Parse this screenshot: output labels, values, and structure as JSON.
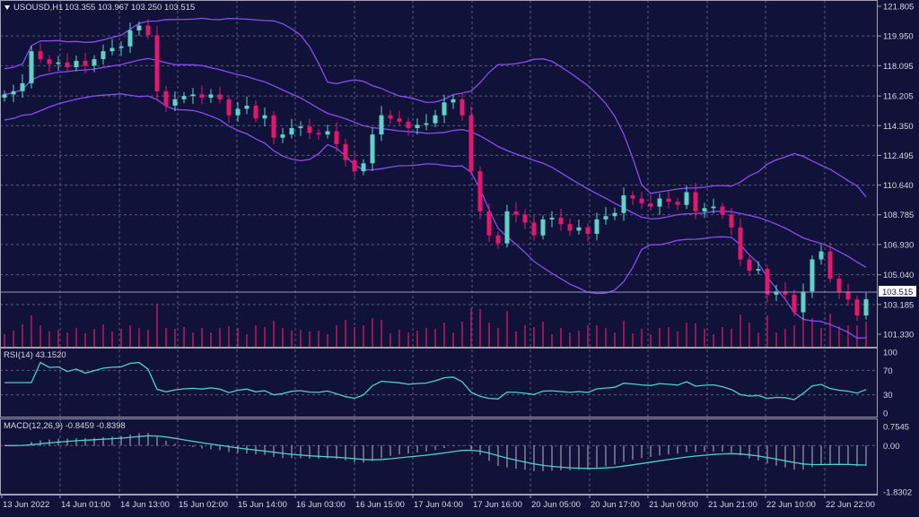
{
  "header": {
    "symbol": "USOUSD,H1",
    "ohlc": "103.355 103.967 103.250 103.515"
  },
  "colors": {
    "background": "#10123a",
    "bull": "#5fd3c8",
    "bear": "#e5176d",
    "bands": "#8b4cf0",
    "indicator_line": "#4fd0c8",
    "volume": "#c0185e",
    "histogram": "#b8b8c8",
    "grid": "#5a5c78"
  },
  "chart_data": [
    {
      "type": "candlestick",
      "title": "USOUSD,H1",
      "indicators": [
        "Bollinger Bands",
        "Volume"
      ],
      "ylim": [
        101.33,
        121.805
      ],
      "yticks": [
        "121.805",
        "119.950",
        "118.095",
        "116.205",
        "114.350",
        "112.495",
        "110.640",
        "108.785",
        "106.930",
        "105.040",
        "103.185",
        "101.330"
      ],
      "current_price": "103.515",
      "xticks": [
        "13 Jun 2022",
        "14 Jun 01:00",
        "14 Jun 13:00",
        "15 Jun 02:00",
        "15 Jun 14:00",
        "16 Jun 03:00",
        "16 Jun 15:00",
        "17 Jun 04:00",
        "17 Jun 16:00",
        "20 Jun 05:00",
        "20 Jun 17:00",
        "21 Jun 09:00",
        "21 Jun 21:00",
        "22 Jun 10:00",
        "22 Jun 22:00"
      ],
      "closes": [
        116.3,
        116.5,
        117,
        119,
        118.5,
        118.2,
        118.3,
        118,
        118.4,
        118.1,
        118.5,
        119,
        119.2,
        119.3,
        120.3,
        120.6,
        120,
        116.5,
        115.6,
        116,
        116.2,
        116.3,
        116.1,
        116.3,
        116,
        115,
        115.4,
        115.6,
        114.8,
        115,
        113.6,
        113.8,
        114.2,
        114.3,
        113.9,
        113.8,
        114,
        113.2,
        112.2,
        111.5,
        112,
        113.8,
        115,
        114.8,
        114.6,
        114.2,
        114.4,
        114.5,
        115,
        115.8,
        116,
        115,
        111.5,
        109,
        107.5,
        107,
        109,
        108.8,
        108.3,
        107.5,
        108.5,
        108.6,
        108.2,
        107.8,
        108,
        107.6,
        108.5,
        108.7,
        108.9,
        110,
        109.8,
        109.5,
        109.3,
        109.8,
        109.6,
        109.4,
        110.2,
        109,
        109.2,
        109.3,
        108.8,
        108,
        106,
        105.3,
        105.4,
        103.8,
        104,
        103.8,
        102.7,
        104,
        106,
        106.5,
        104.8,
        104,
        103.5,
        102.5,
        103.515
      ]
    },
    {
      "type": "line",
      "title": "RSI(14) 43.1520",
      "ylim": [
        0,
        100
      ],
      "yticks": [
        "100",
        "70",
        "30",
        "0"
      ]
    },
    {
      "type": "bar+line",
      "title": "MACD(12,26,9) -0.8459 -0.8398",
      "ylim": [
        -1.8302,
        0.7545
      ],
      "yticks": [
        "0.7545",
        "0.00",
        "-1.8302"
      ]
    }
  ]
}
